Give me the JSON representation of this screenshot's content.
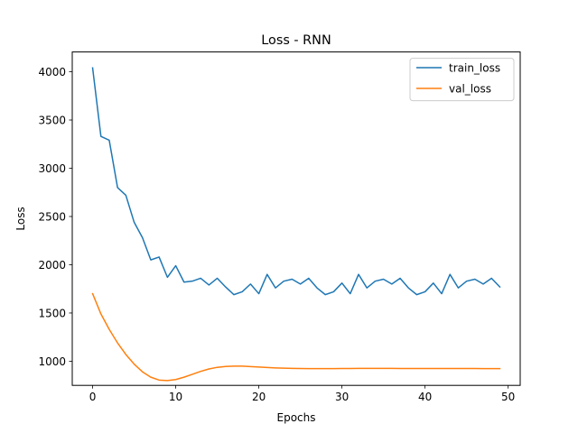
{
  "chart_data": {
    "type": "line",
    "title": "Loss - RNN",
    "xlabel": "Epochs",
    "ylabel": "Loss",
    "xlim": [
      -2.45,
      51.45
    ],
    "ylim": [
      750,
      4205
    ],
    "xticks": [
      0,
      10,
      20,
      30,
      40,
      50
    ],
    "yticks": [
      1000,
      1500,
      2000,
      2500,
      3000,
      3500,
      4000
    ],
    "grid": false,
    "legend_position": "upper-right",
    "x": [
      0,
      1,
      2,
      3,
      4,
      5,
      6,
      7,
      8,
      9,
      10,
      11,
      12,
      13,
      14,
      15,
      16,
      17,
      18,
      19,
      20,
      21,
      22,
      23,
      24,
      25,
      26,
      27,
      28,
      29,
      30,
      31,
      32,
      33,
      34,
      35,
      36,
      37,
      38,
      39,
      40,
      41,
      42,
      43,
      44,
      45,
      46,
      47,
      48,
      49
    ],
    "series": [
      {
        "name": "train_loss",
        "color": "#1f77b4",
        "values": [
          4040,
          3330,
          3290,
          2800,
          2720,
          2440,
          2280,
          2050,
          2080,
          1870,
          1990,
          1820,
          1830,
          1860,
          1790,
          1860,
          1770,
          1690,
          1720,
          1800,
          1700,
          1900,
          1760,
          1830,
          1850,
          1800,
          1860,
          1760,
          1690,
          1720,
          1810,
          1700,
          1900,
          1760,
          1830,
          1850,
          1800,
          1860,
          1760,
          1690,
          1720,
          1810,
          1700,
          1900,
          1760,
          1830,
          1850,
          1800,
          1860,
          1770
        ]
      },
      {
        "name": "val_loss",
        "color": "#ff7f0e",
        "values": [
          1700,
          1490,
          1330,
          1190,
          1070,
          970,
          890,
          835,
          805,
          800,
          810,
          835,
          865,
          895,
          920,
          937,
          946,
          949,
          949,
          945,
          940,
          935,
          931,
          928,
          926,
          925,
          924,
          924,
          924,
          924,
          925,
          925,
          926,
          926,
          926,
          926,
          926,
          925,
          925,
          925,
          925,
          925,
          925,
          925,
          925,
          925,
          925,
          924,
          924,
          924
        ]
      }
    ]
  }
}
